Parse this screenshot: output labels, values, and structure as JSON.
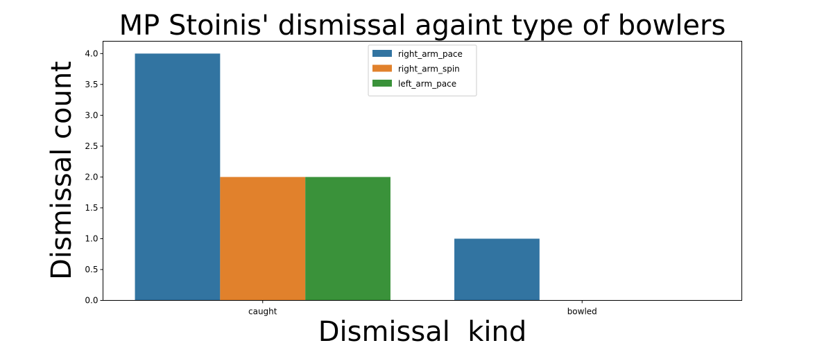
{
  "chart_data": {
    "type": "bar",
    "title": "MP Stoinis' dismissal againt type of bowlers",
    "xlabel": "Dismissal  kind",
    "ylabel": "Dismissal count",
    "categories": [
      "caught",
      "bowled"
    ],
    "series": [
      {
        "name": "right_arm_pace",
        "color": "#3274a1",
        "values": [
          4,
          1
        ]
      },
      {
        "name": "right_arm_spin",
        "color": "#e1812c",
        "values": [
          2,
          0
        ]
      },
      {
        "name": "left_arm_pace",
        "color": "#3a923a",
        "values": [
          2,
          0
        ]
      }
    ],
    "ylim": [
      0,
      4.2
    ],
    "yticks": [
      0.0,
      0.5,
      1.0,
      1.5,
      2.0,
      2.5,
      3.0,
      3.5,
      4.0
    ],
    "ytick_labels": [
      "0.0",
      "0.5",
      "1.0",
      "1.5",
      "2.0",
      "2.5",
      "3.0",
      "3.5",
      "4.0"
    ],
    "grid": false,
    "legend": "upper-center"
  }
}
